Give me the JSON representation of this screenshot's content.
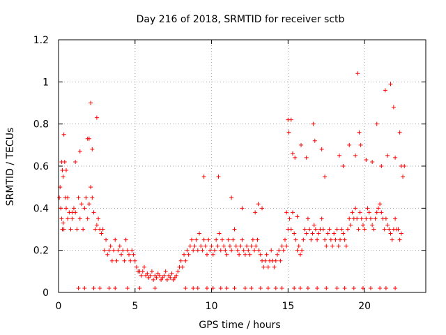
{
  "chart_data": {
    "type": "scatter",
    "title": "Day 216 of 2018, SRMTID for receiver sctb",
    "xlabel": "GPS time / hours",
    "ylabel": "SRMTID / TECUs",
    "xlim": [
      0,
      24
    ],
    "ylim": [
      0,
      1.2
    ],
    "x_ticks": [
      0,
      5,
      10,
      15,
      20
    ],
    "x_tick_labels": [
      "0",
      "5",
      "10",
      "15",
      "20"
    ],
    "y_ticks": [
      0,
      0.2,
      0.4,
      0.6,
      0.8,
      1.0,
      1.2
    ],
    "y_tick_labels": [
      "0",
      "0.2",
      "0.4",
      "0.6",
      "0.8",
      "1",
      "1.2"
    ],
    "grid": true,
    "marker": "plus",
    "series": [
      {
        "name": "SRMTID",
        "color": "#ff0000",
        "x": [
          0.05,
          0.1,
          0.15,
          0.2,
          0.25,
          0.3,
          0.35,
          0.45,
          0.5,
          0.6,
          0.7,
          0.8,
          0.9,
          1.0,
          1.1,
          1.2,
          1.3,
          1.4,
          1.5,
          1.6,
          1.7,
          1.8,
          1.9,
          2.0,
          2.1,
          2.2,
          2.3,
          2.4,
          2.5,
          2.6,
          2.7,
          2.8,
          2.9,
          3.0,
          3.1,
          3.2,
          3.3,
          3.4,
          3.5,
          3.6,
          3.7,
          3.8,
          3.9,
          4.0,
          4.1,
          4.2,
          4.3,
          4.4,
          4.5,
          4.6,
          4.7,
          4.8,
          4.9,
          5.0,
          5.1,
          5.2,
          5.3,
          5.4,
          5.5,
          5.6,
          5.7,
          5.8,
          5.9,
          6.0,
          6.1,
          6.2,
          6.3,
          6.4,
          6.5,
          6.6,
          6.7,
          6.8,
          6.9,
          7.0,
          7.1,
          7.2,
          7.3,
          7.4,
          7.5,
          7.6,
          7.7,
          7.8,
          7.9,
          8.0,
          8.1,
          8.2,
          8.3,
          8.4,
          8.5,
          8.6,
          8.7,
          8.8,
          8.9,
          9.0,
          9.1,
          9.2,
          9.3,
          9.4,
          9.5,
          9.6,
          9.7,
          9.8,
          9.9,
          10.0,
          10.1,
          10.2,
          10.3,
          10.4,
          10.5,
          10.6,
          10.7,
          10.8,
          10.9,
          11.0,
          11.1,
          11.2,
          11.3,
          11.4,
          11.5,
          11.6,
          11.7,
          11.8,
          11.9,
          12.0,
          12.1,
          12.2,
          12.3,
          12.4,
          12.5,
          12.6,
          12.7,
          12.8,
          12.9,
          13.0,
          13.1,
          13.2,
          13.3,
          13.4,
          13.5,
          13.6,
          13.7,
          13.8,
          13.9,
          14.0,
          14.1,
          14.2,
          14.3,
          14.4,
          14.5,
          14.6,
          14.7,
          14.8,
          14.9,
          15.0,
          15.1,
          15.2,
          15.3,
          15.4,
          15.5,
          15.6,
          15.7,
          15.8,
          15.9,
          16.0,
          16.1,
          16.2,
          16.3,
          16.4,
          16.5,
          16.6,
          16.7,
          16.8,
          16.9,
          17.0,
          17.1,
          17.2,
          17.3,
          17.4,
          17.5,
          17.6,
          17.7,
          17.8,
          17.9,
          18.0,
          18.1,
          18.2,
          18.3,
          18.4,
          18.5,
          18.6,
          18.7,
          18.8,
          18.9,
          19.0,
          19.1,
          19.2,
          19.3,
          19.4,
          19.5,
          19.6,
          19.7,
          19.8,
          19.9,
          20.0,
          20.1,
          20.2,
          20.3,
          20.4,
          20.5,
          20.6,
          20.7,
          20.8,
          20.9,
          21.0,
          21.1,
          21.2,
          21.3,
          21.4,
          21.5,
          21.6,
          21.7,
          21.8,
          21.9,
          22.0,
          22.1,
          22.2,
          22.3,
          22.4,
          22.5,
          22.6,
          0.2,
          0.25,
          0.3,
          0.4,
          0.5,
          1.1,
          1.9,
          2.2,
          2.1,
          2.5,
          0.35,
          1.4,
          2.0,
          15.0,
          15.05,
          15.2,
          15.3,
          15.45,
          15.85,
          16.2,
          16.65,
          16.75,
          17.2,
          17.4,
          18.35,
          18.6,
          19.0,
          19.4,
          19.55,
          19.65,
          19.75,
          20.1,
          20.5,
          20.8,
          21.1,
          21.35,
          21.5,
          21.7,
          21.9,
          22.0,
          22.3,
          22.4,
          9.5,
          10.45,
          11.3,
          12.0,
          12.85,
          13.05,
          13.3,
          14.9,
          15.6,
          0.6,
          0.9,
          1.3,
          1.7,
          2.3,
          2.7,
          3.3,
          3.7,
          4.5,
          5.3,
          6.3,
          8.3,
          8.8,
          9.1,
          9.7,
          10.1,
          10.6,
          11.0,
          11.5,
          12.2,
          12.6,
          13.2,
          13.7,
          14.2,
          14.6,
          15.4,
          15.8,
          16.3,
          16.9,
          17.5,
          18.2,
          18.7,
          19.3,
          19.9,
          20.4,
          21.0,
          21.4,
          22.0
        ],
        "y": [
          0.45,
          0.5,
          0.4,
          0.35,
          0.3,
          0.33,
          0.3,
          0.45,
          0.4,
          0.35,
          0.38,
          0.3,
          0.35,
          0.4,
          0.38,
          0.3,
          0.45,
          0.35,
          0.42,
          0.3,
          0.4,
          0.45,
          0.35,
          0.42,
          0.5,
          0.45,
          0.38,
          0.3,
          0.32,
          0.35,
          0.3,
          0.28,
          0.3,
          0.2,
          0.25,
          0.18,
          0.2,
          0.22,
          0.15,
          0.2,
          0.25,
          0.15,
          0.2,
          0.22,
          0.18,
          0.2,
          0.15,
          0.25,
          0.2,
          0.18,
          0.15,
          0.2,
          0.18,
          0.15,
          0.12,
          0.1,
          0.1,
          0.08,
          0.1,
          0.12,
          0.08,
          0.09,
          0.07,
          0.08,
          0.1,
          0.06,
          0.08,
          0.07,
          0.09,
          0.08,
          0.06,
          0.07,
          0.08,
          0.1,
          0.06,
          0.08,
          0.07,
          0.09,
          0.06,
          0.07,
          0.08,
          0.1,
          0.12,
          0.15,
          0.12,
          0.18,
          0.15,
          0.2,
          0.18,
          0.22,
          0.25,
          0.2,
          0.22,
          0.25,
          0.2,
          0.28,
          0.22,
          0.2,
          0.25,
          0.22,
          0.18,
          0.25,
          0.2,
          0.22,
          0.18,
          0.2,
          0.25,
          0.22,
          0.28,
          0.2,
          0.25,
          0.22,
          0.2,
          0.18,
          0.25,
          0.22,
          0.2,
          0.25,
          0.3,
          0.22,
          0.2,
          0.18,
          0.22,
          0.25,
          0.2,
          0.18,
          0.22,
          0.2,
          0.18,
          0.22,
          0.25,
          0.2,
          0.22,
          0.25,
          0.2,
          0.18,
          0.15,
          0.12,
          0.15,
          0.18,
          0.12,
          0.15,
          0.2,
          0.15,
          0.12,
          0.15,
          0.18,
          0.2,
          0.15,
          0.22,
          0.2,
          0.25,
          0.22,
          0.3,
          0.35,
          0.3,
          0.38,
          0.28,
          0.25,
          0.2,
          0.22,
          0.18,
          0.2,
          0.25,
          0.3,
          0.28,
          0.35,
          0.3,
          0.25,
          0.28,
          0.32,
          0.3,
          0.25,
          0.28,
          0.3,
          0.35,
          0.3,
          0.25,
          0.22,
          0.28,
          0.3,
          0.25,
          0.22,
          0.28,
          0.25,
          0.3,
          0.22,
          0.25,
          0.3,
          0.28,
          0.25,
          0.22,
          0.3,
          0.35,
          0.32,
          0.38,
          0.35,
          0.4,
          0.35,
          0.3,
          0.38,
          0.35,
          0.32,
          0.3,
          0.35,
          0.4,
          0.38,
          0.35,
          0.32,
          0.3,
          0.35,
          0.38,
          0.4,
          0.42,
          0.38,
          0.35,
          0.3,
          0.35,
          0.32,
          0.3,
          0.28,
          0.25,
          0.3,
          0.35,
          0.3,
          0.3,
          0.25,
          0.28,
          0.55,
          0.6,
          0.62,
          0.58,
          0.55,
          0.62,
          0.58,
          0.62,
          0.73,
          0.68,
          0.9,
          0.83,
          0.75,
          0.67,
          0.73,
          0.82,
          0.76,
          0.82,
          0.66,
          0.64,
          0.7,
          0.64,
          0.8,
          0.72,
          0.68,
          0.55,
          0.65,
          0.6,
          0.7,
          0.65,
          1.04,
          0.76,
          0.7,
          0.63,
          0.62,
          0.8,
          0.6,
          0.96,
          0.65,
          0.99,
          0.88,
          0.64,
          0.76,
          0.6,
          0.55,
          0.55,
          0.45,
          0.4,
          0.38,
          0.42,
          0.4,
          0.38,
          0.36,
          0.45,
          0.38,
          0.02,
          0.02,
          0.02,
          0.02,
          0.02,
          0.02,
          0.02,
          0.02,
          0.02,
          0.02,
          0.02,
          0.02,
          0.02,
          0.02,
          0.02,
          0.02,
          0.02,
          0.02,
          0.02,
          0.02,
          0.02,
          0.02,
          0.02,
          0.02,
          0.02,
          0.02,
          0.02,
          0.02,
          0.02,
          0.02,
          0.02,
          0.02,
          0.02,
          0.02,
          0.02,
          0.02
        ]
      }
    ]
  }
}
